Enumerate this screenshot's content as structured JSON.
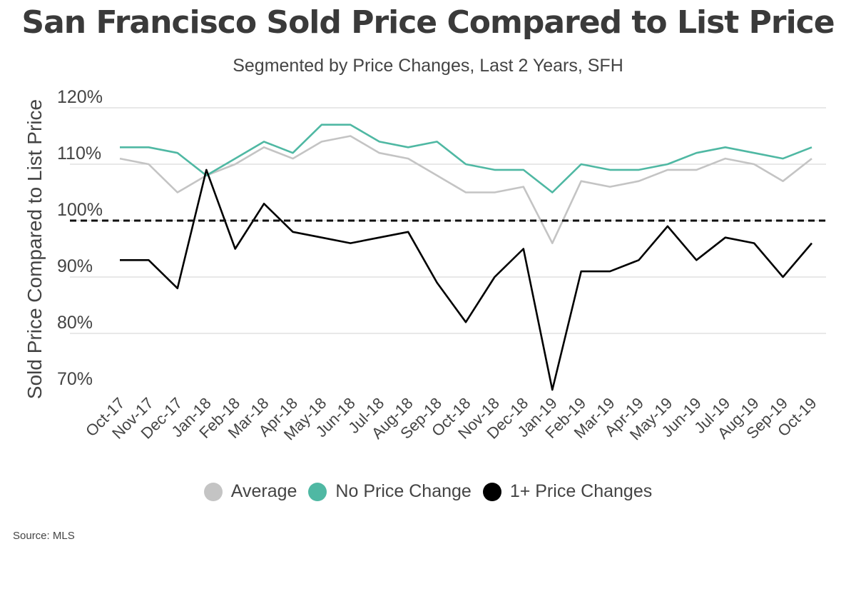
{
  "chart_data": {
    "type": "line",
    "title": "San Francisco Sold Price Compared to List Price",
    "subtitle": "Segmented by Price Changes, Last 2 Years, SFH",
    "ylabel": "Sold Price Compared to List Price",
    "xlabel": "",
    "ylim": [
      70,
      120
    ],
    "yticks": [
      "70%",
      "80%",
      "90%",
      "100%",
      "110%",
      "120%"
    ],
    "ytick_values": [
      70,
      80,
      90,
      100,
      110,
      120
    ],
    "reference_line": 100,
    "grid": true,
    "legend_position": "bottom",
    "categories": [
      "Oct-17",
      "Nov-17",
      "Dec-17",
      "Jan-18",
      "Feb-18",
      "Mar-18",
      "Apr-18",
      "May-18",
      "Jun-18",
      "Jul-18",
      "Aug-18",
      "Sep-18",
      "Oct-18",
      "Nov-18",
      "Dec-18",
      "Jan-19",
      "Feb-19",
      "Mar-19",
      "Apr-19",
      "May-19",
      "Jun-19",
      "Jul-19",
      "Aug-19",
      "Sep-19",
      "Oct-19"
    ],
    "series": [
      {
        "name": "Average",
        "color": "#c4c4c4",
        "values": [
          111,
          110,
          105,
          108,
          110,
          113,
          111,
          114,
          115,
          112,
          111,
          108,
          105,
          105,
          106,
          96,
          107,
          106,
          107,
          109,
          109,
          111,
          110,
          107,
          111
        ]
      },
      {
        "name": "No Price Change",
        "color": "#4fb8a3",
        "values": [
          113,
          113,
          112,
          108,
          111,
          114,
          112,
          117,
          117,
          114,
          113,
          114,
          110,
          109,
          109,
          105,
          110,
          109,
          109,
          110,
          112,
          113,
          112,
          111,
          113
        ]
      },
      {
        "name": "1+ Price Changes",
        "color": "#000000",
        "values": [
          93,
          93,
          88,
          109,
          95,
          103,
          98,
          97,
          96,
          97,
          98,
          89,
          82,
          90,
          95,
          70,
          91,
          91,
          93,
          99,
          93,
          97,
          96,
          90,
          96
        ]
      }
    ]
  },
  "source": "Source:  MLS"
}
